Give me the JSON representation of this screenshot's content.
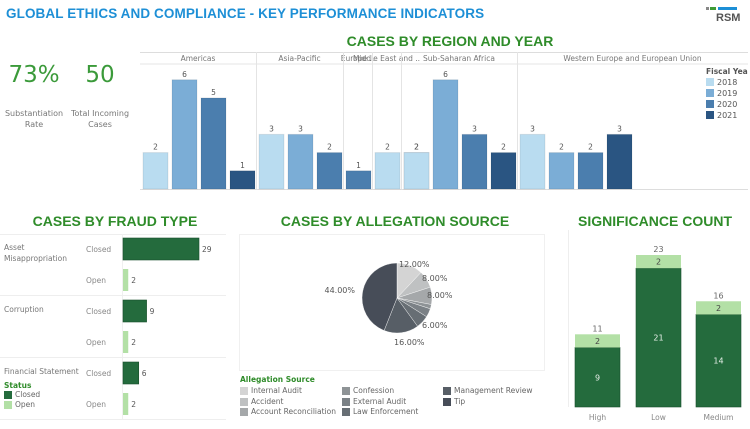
{
  "header": {
    "title": "GLOBAL ETHICS AND COMPLIANCE - KEY PERFORMANCE INDICATORS",
    "logo_text": "RSM"
  },
  "kpis": [
    {
      "value": "73%",
      "label_line1": "Substantiation",
      "label_line2": "Rate"
    },
    {
      "value": "50",
      "label_line1": "Total Incoming",
      "label_line2": "Cases"
    }
  ],
  "colors": {
    "title_blue": "#1d8fd6",
    "section_green": "#2f8c2a",
    "closed": "#246b3d",
    "open": "#b3e0a6",
    "year_2018": "#b9dcf0",
    "year_2019": "#7badd6",
    "year_2020": "#4b7eae",
    "year_2021": "#2a5582"
  },
  "chart_data": [
    {
      "id": "region-year",
      "type": "bar",
      "title": "CASES BY REGION AND YEAR",
      "legend_title": "Fiscal Year",
      "legend_position": "top-right",
      "years": [
        "2018",
        "2019",
        "2020",
        "2021"
      ],
      "groups": [
        {
          "region": "Americas",
          "bars": [
            {
              "year": "2018",
              "value": 2
            },
            {
              "year": "2019",
              "value": 6
            },
            {
              "year": "2020",
              "value": 5
            },
            {
              "year": "2021",
              "value": 1
            }
          ]
        },
        {
          "region": "Asia-Pacific",
          "bars": [
            {
              "year": "2018",
              "value": 3
            },
            {
              "year": "2019",
              "value": 3
            },
            {
              "year": "2020",
              "value": 2
            }
          ]
        },
        {
          "region": "Europe ..",
          "bars": [
            {
              "year": "2020",
              "value": 1
            }
          ]
        },
        {
          "region": "Middle East and ..",
          "bars": [
            {
              "year": "2018",
              "value": 2
            },
            {
              "year": "2020",
              "value": 2
            }
          ]
        },
        {
          "region": "Sub-Saharan Africa",
          "bars": [
            {
              "year": "2018",
              "value": 2
            },
            {
              "year": "2019",
              "value": 6
            },
            {
              "year": "2020",
              "value": 3
            },
            {
              "year": "2021",
              "value": 2
            }
          ]
        },
        {
          "region": "Western Europe and European Union",
          "bars": [
            {
              "year": "2018",
              "value": 3
            },
            {
              "year": "2019",
              "value": 2
            },
            {
              "year": "2020",
              "value": 2
            },
            {
              "year": "2021",
              "value": 3
            }
          ]
        }
      ],
      "ylim": [
        0,
        6.8
      ]
    },
    {
      "id": "fraud-type",
      "type": "bar",
      "orientation": "horizontal",
      "title": "CASES BY FRAUD TYPE",
      "legend_title": "Status",
      "legend": [
        "Closed",
        "Open"
      ],
      "rows": [
        {
          "category": "Asset Misappropriation",
          "category_lines": [
            "Asset",
            "Misappropriation"
          ],
          "items": [
            {
              "status": "Closed",
              "value": 29
            },
            {
              "status": "Open",
              "value": 2
            }
          ]
        },
        {
          "category": "Corruption",
          "category_lines": [
            "Corruption"
          ],
          "items": [
            {
              "status": "Closed",
              "value": 9
            },
            {
              "status": "Open",
              "value": 2
            }
          ]
        },
        {
          "category": "Financial Statement",
          "category_lines": [
            "Financial Statement"
          ],
          "items": [
            {
              "status": "Closed",
              "value": 6
            },
            {
              "status": "Open",
              "value": 2
            }
          ]
        }
      ],
      "xlim": [
        0,
        29
      ]
    },
    {
      "id": "allegation-source",
      "type": "pie",
      "title": "CASES BY ALLEGATION SOURCE",
      "legend_title": "Allegation Source",
      "slices": [
        {
          "name": "Internal Audit",
          "value": 12,
          "label": "12.00%",
          "color": "#d4d4d4"
        },
        {
          "name": "Accident",
          "value": 8,
          "label": "8.00%",
          "color": "#bfc1c2"
        },
        {
          "name": "Account Reconciliation",
          "value": 8,
          "label": "8.00%",
          "color": "#a5a8aa"
        },
        {
          "name": "Confession",
          "value": 2,
          "label": "",
          "color": "#8e9396"
        },
        {
          "name": "External Audit",
          "value": 4,
          "label": "",
          "color": "#7b8186"
        },
        {
          "name": "Law Enforcement",
          "value": 6,
          "label": "6.00%",
          "color": "#676e74"
        },
        {
          "name": "Management Review",
          "value": 16,
          "label": "16.00%",
          "color": "#575e66"
        },
        {
          "name": "Tip",
          "value": 44,
          "label": "44.00%",
          "color": "#474d58"
        }
      ]
    },
    {
      "id": "significance",
      "type": "bar",
      "stacked": true,
      "title": "SIGNIFICANCE COUNT",
      "categories": [
        "High",
        "Low",
        "Medium"
      ],
      "series": [
        {
          "name": "Closed",
          "values": [
            9,
            21,
            14
          ]
        },
        {
          "name": "Open",
          "values": [
            2,
            2,
            2
          ]
        }
      ],
      "totals": [
        11,
        23,
        16
      ],
      "ylim": [
        0,
        25
      ]
    }
  ]
}
